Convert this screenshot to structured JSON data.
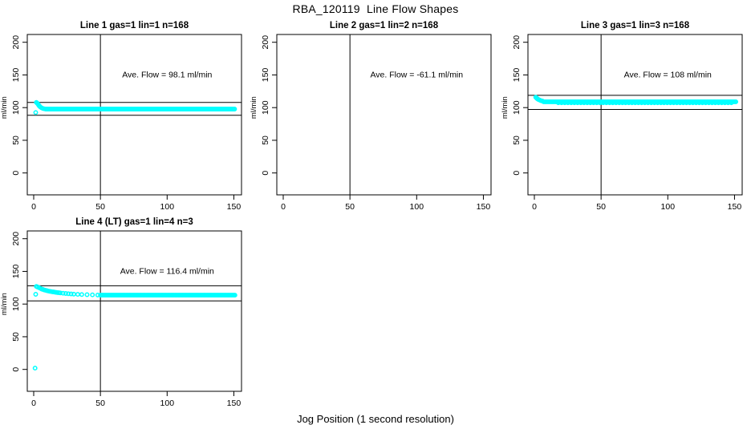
{
  "figure": {
    "title": "RBA_120119  Line Flow Shapes",
    "x_axis_label": "Jog Position (1 second resolution)"
  },
  "colors": {
    "points": "#00ffff",
    "axis": "#000000",
    "background": "#ffffff"
  },
  "chart_data": [
    {
      "type": "scatter",
      "title": "Line 1 gas=1 lin=1 n=168",
      "annotation": "Ave. Flow =  98.1  ml/min",
      "ave_flow_ml_min": 98.1,
      "n": 168,
      "ylabel": "ml/min",
      "xticks": [
        0,
        50,
        100,
        150
      ],
      "yticks": [
        0,
        50,
        100,
        150,
        200
      ],
      "xlim": [
        0,
        155
      ],
      "ylim": [
        -33,
        212
      ],
      "vline_x": 50,
      "ref_lines": [
        107.9,
        88.3
      ],
      "points": [
        [
          1.5,
          92.5
        ],
        [
          2,
          108
        ],
        [
          2.5,
          107
        ],
        [
          3,
          106
        ],
        [
          3.5,
          104.5
        ],
        [
          4,
          103
        ],
        [
          4.5,
          102
        ],
        [
          5,
          101
        ],
        [
          6,
          99.5
        ],
        [
          7,
          98.7
        ],
        [
          8,
          98.2
        ]
      ],
      "runs": [
        {
          "x1": 9,
          "x2": 151,
          "y": 97.8,
          "step": 0.8
        }
      ]
    },
    {
      "type": "scatter",
      "title": "Line 2 gas=1 lin=2 n=168",
      "annotation": "Ave. Flow =  -61.1  ml/min",
      "ave_flow_ml_min": -61.1,
      "n": 168,
      "ylabel": "ml/min",
      "xticks": [
        0,
        50,
        100,
        150
      ],
      "yticks": [
        0,
        50,
        100,
        150,
        200
      ],
      "xlim": [
        0,
        155
      ],
      "ylim": [
        -33,
        212
      ],
      "vline_x": 50,
      "ref_lines": [],
      "points": [],
      "runs": []
    },
    {
      "type": "scatter",
      "title": "Line 3 gas=1 lin=3 n=168",
      "annotation": "Ave. Flow =  108  ml/min",
      "ave_flow_ml_min": 108,
      "n": 168,
      "ylabel": "ml/min",
      "xticks": [
        0,
        50,
        100,
        150
      ],
      "yticks": [
        0,
        50,
        100,
        150,
        200
      ],
      "xlim": [
        0,
        155
      ],
      "ylim": [
        -33,
        212
      ],
      "vline_x": 50,
      "ref_lines": [
        118.8,
        97.2
      ],
      "points": [
        [
          1,
          116
        ],
        [
          1.5,
          115
        ],
        [
          2,
          114
        ],
        [
          2.5,
          113
        ],
        [
          3,
          112.5
        ],
        [
          4,
          111.5
        ],
        [
          5,
          110.5
        ],
        [
          6,
          110
        ]
      ],
      "runs": [
        {
          "x1": 7,
          "x2": 151,
          "y": 109,
          "step": 0.8
        },
        {
          "x1": 18,
          "x2": 148,
          "y": 107.4,
          "step": 2.4
        }
      ]
    },
    {
      "type": "scatter",
      "title": "Line 4 (LT) gas=1 lin=4 n=3",
      "annotation": "Ave. Flow =  116.4  ml/min",
      "ave_flow_ml_min": 116.4,
      "n": 3,
      "ylabel": "ml/min",
      "xticks": [
        0,
        50,
        100,
        150
      ],
      "yticks": [
        0,
        50,
        100,
        150,
        200
      ],
      "xlim": [
        0,
        155
      ],
      "ylim": [
        -33,
        212
      ],
      "vline_x": 50,
      "ref_lines": [
        128.0,
        104.8
      ],
      "points": [
        [
          1,
          2
        ],
        [
          1.5,
          115
        ],
        [
          2,
          127
        ],
        [
          2.5,
          126.5
        ],
        [
          3,
          126
        ],
        [
          4,
          125
        ],
        [
          5,
          124
        ],
        [
          6,
          123
        ],
        [
          7,
          122.3
        ],
        [
          8,
          121.5
        ],
        [
          9,
          121
        ],
        [
          10,
          120.5
        ],
        [
          11,
          120
        ],
        [
          12,
          119.5
        ],
        [
          13,
          119.2
        ],
        [
          14,
          118.8
        ],
        [
          15,
          118.5
        ],
        [
          16,
          118.1
        ],
        [
          17,
          117.8
        ],
        [
          18,
          117.5
        ],
        [
          19,
          117.3
        ],
        [
          20,
          117
        ],
        [
          22,
          116.6
        ],
        [
          24,
          116.2
        ],
        [
          26,
          115.8
        ],
        [
          28,
          115.5
        ],
        [
          30,
          115.2
        ],
        [
          33,
          114.9
        ],
        [
          36,
          114.6
        ],
        [
          40,
          114.3
        ],
        [
          44,
          114.1
        ],
        [
          48,
          113.9
        ]
      ],
      "runs": [
        {
          "x1": 50,
          "x2": 151,
          "y": 113.6,
          "step": 0.8
        }
      ]
    }
  ]
}
